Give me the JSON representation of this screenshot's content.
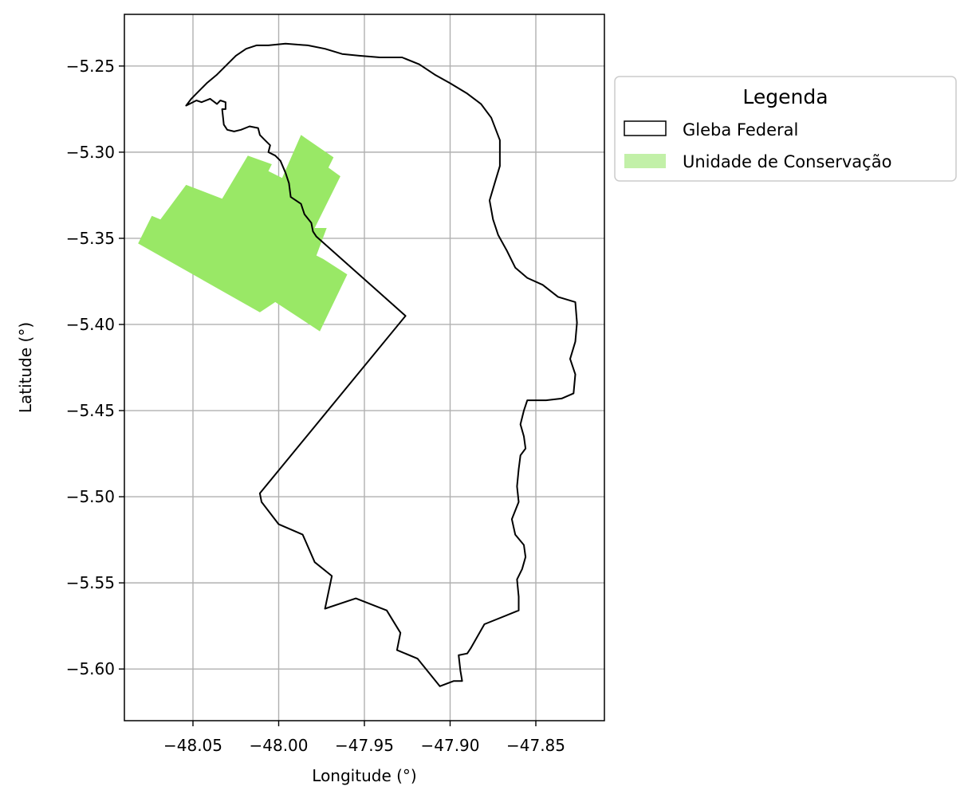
{
  "map": {
    "xlabel": "Longitude (°)",
    "ylabel": "Latitude (°)",
    "x_ticks": [
      "−48.05",
      "−48.00",
      "−47.95",
      "−47.90",
      "−47.85"
    ],
    "y_ticks": [
      "−5.25",
      "−5.30",
      "−5.35",
      "−5.40",
      "−5.45",
      "−5.50",
      "−5.55",
      "−5.60"
    ],
    "grid": true,
    "legend": {
      "title": "Legenda",
      "placement": "outside right, top",
      "items": [
        {
          "label": "Gleba Federal",
          "style": "outline",
          "color": "#000000"
        },
        {
          "label": "Unidade de Conservação",
          "style": "fill",
          "color": "#c2f0a8"
        }
      ]
    },
    "colors": {
      "gleba_outline": "#000000",
      "uc_fill": "#99e866",
      "grid": "#b0b0b0"
    }
  },
  "chart_data": {
    "type": "map",
    "xlim": [
      -48.09,
      -47.81
    ],
    "ylim": [
      -5.63,
      -5.22
    ],
    "x_tick_values": [
      -48.05,
      -48.0,
      -47.95,
      -47.9,
      -47.85
    ],
    "y_tick_values": [
      -5.25,
      -5.3,
      -5.35,
      -5.4,
      -5.45,
      -5.5,
      -5.55,
      -5.6
    ],
    "layers": [
      {
        "name": "Unidade de Conservação",
        "type": "polygon",
        "coordinates": [
          [
            -48.082,
            -5.353
          ],
          [
            -48.074,
            -5.337
          ],
          [
            -48.069,
            -5.339
          ],
          [
            -48.054,
            -5.319
          ],
          [
            -48.033,
            -5.327
          ],
          [
            -48.018,
            -5.302
          ],
          [
            -48.004,
            -5.307
          ],
          [
            -48.006,
            -5.311
          ],
          [
            -47.998,
            -5.315
          ],
          [
            -47.987,
            -5.29
          ],
          [
            -47.968,
            -5.303
          ],
          [
            -47.971,
            -5.309
          ],
          [
            -47.964,
            -5.314
          ],
          [
            -47.979,
            -5.344
          ],
          [
            -47.972,
            -5.344
          ],
          [
            -47.978,
            -5.36
          ],
          [
            -47.974,
            -5.362
          ],
          [
            -47.96,
            -5.371
          ],
          [
            -47.976,
            -5.404
          ],
          [
            -48.002,
            -5.387
          ],
          [
            -48.011,
            -5.393
          ]
        ]
      },
      {
        "name": "Gleba Federal",
        "type": "polygon",
        "coordinates": [
          [
            -48.054,
            -5.273
          ],
          [
            -48.048,
            -5.27
          ],
          [
            -48.045,
            -5.271
          ],
          [
            -48.04,
            -5.269
          ],
          [
            -48.036,
            -5.272
          ],
          [
            -48.034,
            -5.27
          ],
          [
            -48.031,
            -5.271
          ],
          [
            -48.031,
            -5.275
          ],
          [
            -48.033,
            -5.275
          ],
          [
            -48.032,
            -5.284
          ],
          [
            -48.03,
            -5.287
          ],
          [
            -48.026,
            -5.288
          ],
          [
            -48.022,
            -5.287
          ],
          [
            -48.017,
            -5.285
          ],
          [
            -48.012,
            -5.286
          ],
          [
            -48.011,
            -5.29
          ],
          [
            -48.008,
            -5.293
          ],
          [
            -48.005,
            -5.296
          ],
          [
            -48.006,
            -5.3
          ],
          [
            -48.002,
            -5.302
          ],
          [
            -47.999,
            -5.305
          ],
          [
            -47.996,
            -5.312
          ],
          [
            -47.994,
            -5.318
          ],
          [
            -47.993,
            -5.326
          ],
          [
            -47.987,
            -5.33
          ],
          [
            -47.985,
            -5.336
          ],
          [
            -47.981,
            -5.341
          ],
          [
            -47.98,
            -5.346
          ],
          [
            -47.978,
            -5.349
          ],
          [
            -47.926,
            -5.395
          ],
          [
            -48.011,
            -5.498
          ],
          [
            -48.01,
            -5.503
          ],
          [
            -48.0,
            -5.516
          ],
          [
            -47.986,
            -5.522
          ],
          [
            -47.979,
            -5.538
          ],
          [
            -47.969,
            -5.546
          ],
          [
            -47.973,
            -5.565
          ],
          [
            -47.955,
            -5.559
          ],
          [
            -47.937,
            -5.566
          ],
          [
            -47.929,
            -5.579
          ],
          [
            -47.931,
            -5.589
          ],
          [
            -47.919,
            -5.594
          ],
          [
            -47.906,
            -5.61
          ],
          [
            -47.898,
            -5.607
          ],
          [
            -47.893,
            -5.607
          ],
          [
            -47.894,
            -5.601
          ],
          [
            -47.895,
            -5.592
          ],
          [
            -47.89,
            -5.591
          ],
          [
            -47.888,
            -5.588
          ],
          [
            -47.884,
            -5.581
          ],
          [
            -47.88,
            -5.574
          ],
          [
            -47.86,
            -5.566
          ],
          [
            -47.86,
            -5.558
          ],
          [
            -47.861,
            -5.548
          ],
          [
            -47.858,
            -5.542
          ],
          [
            -47.856,
            -5.535
          ],
          [
            -47.857,
            -5.528
          ],
          [
            -47.862,
            -5.522
          ],
          [
            -47.864,
            -5.513
          ],
          [
            -47.86,
            -5.503
          ],
          [
            -47.861,
            -5.494
          ],
          [
            -47.86,
            -5.484
          ],
          [
            -47.859,
            -5.476
          ],
          [
            -47.856,
            -5.472
          ],
          [
            -47.857,
            -5.465
          ],
          [
            -47.859,
            -5.458
          ],
          [
            -47.857,
            -5.45
          ],
          [
            -47.855,
            -5.444
          ],
          [
            -47.844,
            -5.444
          ],
          [
            -47.835,
            -5.443
          ],
          [
            -47.828,
            -5.44
          ],
          [
            -47.827,
            -5.429
          ],
          [
            -47.83,
            -5.42
          ],
          [
            -47.827,
            -5.41
          ],
          [
            -47.826,
            -5.399
          ],
          [
            -47.827,
            -5.387
          ],
          [
            -47.837,
            -5.384
          ],
          [
            -47.846,
            -5.377
          ],
          [
            -47.855,
            -5.373
          ],
          [
            -47.862,
            -5.367
          ],
          [
            -47.867,
            -5.357
          ],
          [
            -47.872,
            -5.348
          ],
          [
            -47.875,
            -5.339
          ],
          [
            -47.877,
            -5.328
          ],
          [
            -47.874,
            -5.318
          ],
          [
            -47.871,
            -5.308
          ],
          [
            -47.871,
            -5.293
          ],
          [
            -47.876,
            -5.28
          ],
          [
            -47.882,
            -5.272
          ],
          [
            -47.89,
            -5.266
          ],
          [
            -47.9,
            -5.26
          ],
          [
            -47.909,
            -5.255
          ],
          [
            -47.918,
            -5.249
          ],
          [
            -47.928,
            -5.245
          ],
          [
            -47.941,
            -5.245
          ],
          [
            -47.953,
            -5.244
          ],
          [
            -47.963,
            -5.243
          ],
          [
            -47.973,
            -5.24
          ],
          [
            -47.983,
            -5.238
          ],
          [
            -47.996,
            -5.237
          ],
          [
            -48.006,
            -5.238
          ],
          [
            -48.013,
            -5.238
          ],
          [
            -48.019,
            -5.24
          ],
          [
            -48.025,
            -5.244
          ],
          [
            -48.03,
            -5.249
          ],
          [
            -48.036,
            -5.255
          ],
          [
            -48.042,
            -5.26
          ],
          [
            -48.047,
            -5.265
          ],
          [
            -48.051,
            -5.269
          ],
          [
            -48.054,
            -5.273
          ]
        ]
      }
    ]
  }
}
